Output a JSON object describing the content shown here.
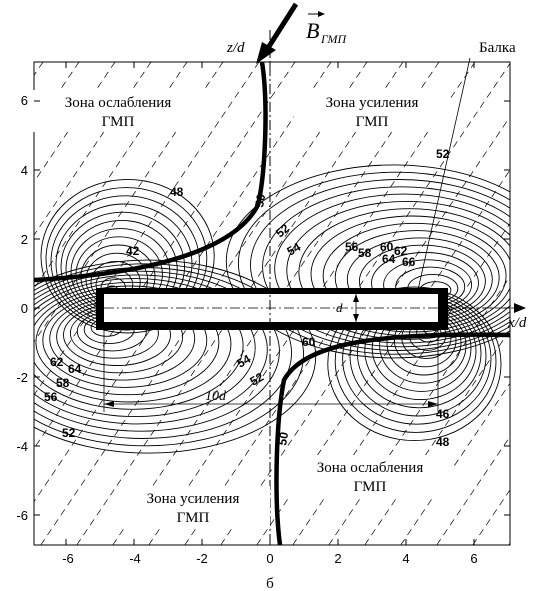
{
  "field_symbol": "B",
  "field_subscript": "ГМП",
  "axis_x_label": "x/d",
  "axis_z_label": "z/d",
  "beam_label": "Балка",
  "dim_d": "d",
  "dim_10d": "10d",
  "subfigure": "б",
  "zones": [
    {
      "line1": "Зона ослабления",
      "line2": "ГМП"
    },
    {
      "line1": "Зона усиления",
      "line2": "ГМП"
    },
    {
      "line1": "Зона ослабления",
      "line2": "ГМП"
    },
    {
      "line1": "Зона усиления",
      "line2": "ГМП"
    }
  ],
  "x_ticks": [
    "-6",
    "-4",
    "-2",
    "0",
    "2",
    "4",
    "6"
  ],
  "y_ticks": [
    "6",
    "4",
    "2",
    "0",
    "-2",
    "-4",
    "-6"
  ],
  "contour_labels": [
    "52",
    "48",
    "42",
    "50",
    "52",
    "54",
    "56",
    "58",
    "60",
    "62",
    "64",
    "66",
    "60",
    "54",
    "52",
    "62",
    "64",
    "58",
    "56",
    "50",
    "46",
    "48",
    "52"
  ],
  "beam": {
    "x_from": -5,
    "x_to": 5,
    "z_from": -0.5,
    "z_to": 0.5
  },
  "x_range": [
    -7,
    7
  ],
  "z_range": [
    -7,
    7
  ]
}
